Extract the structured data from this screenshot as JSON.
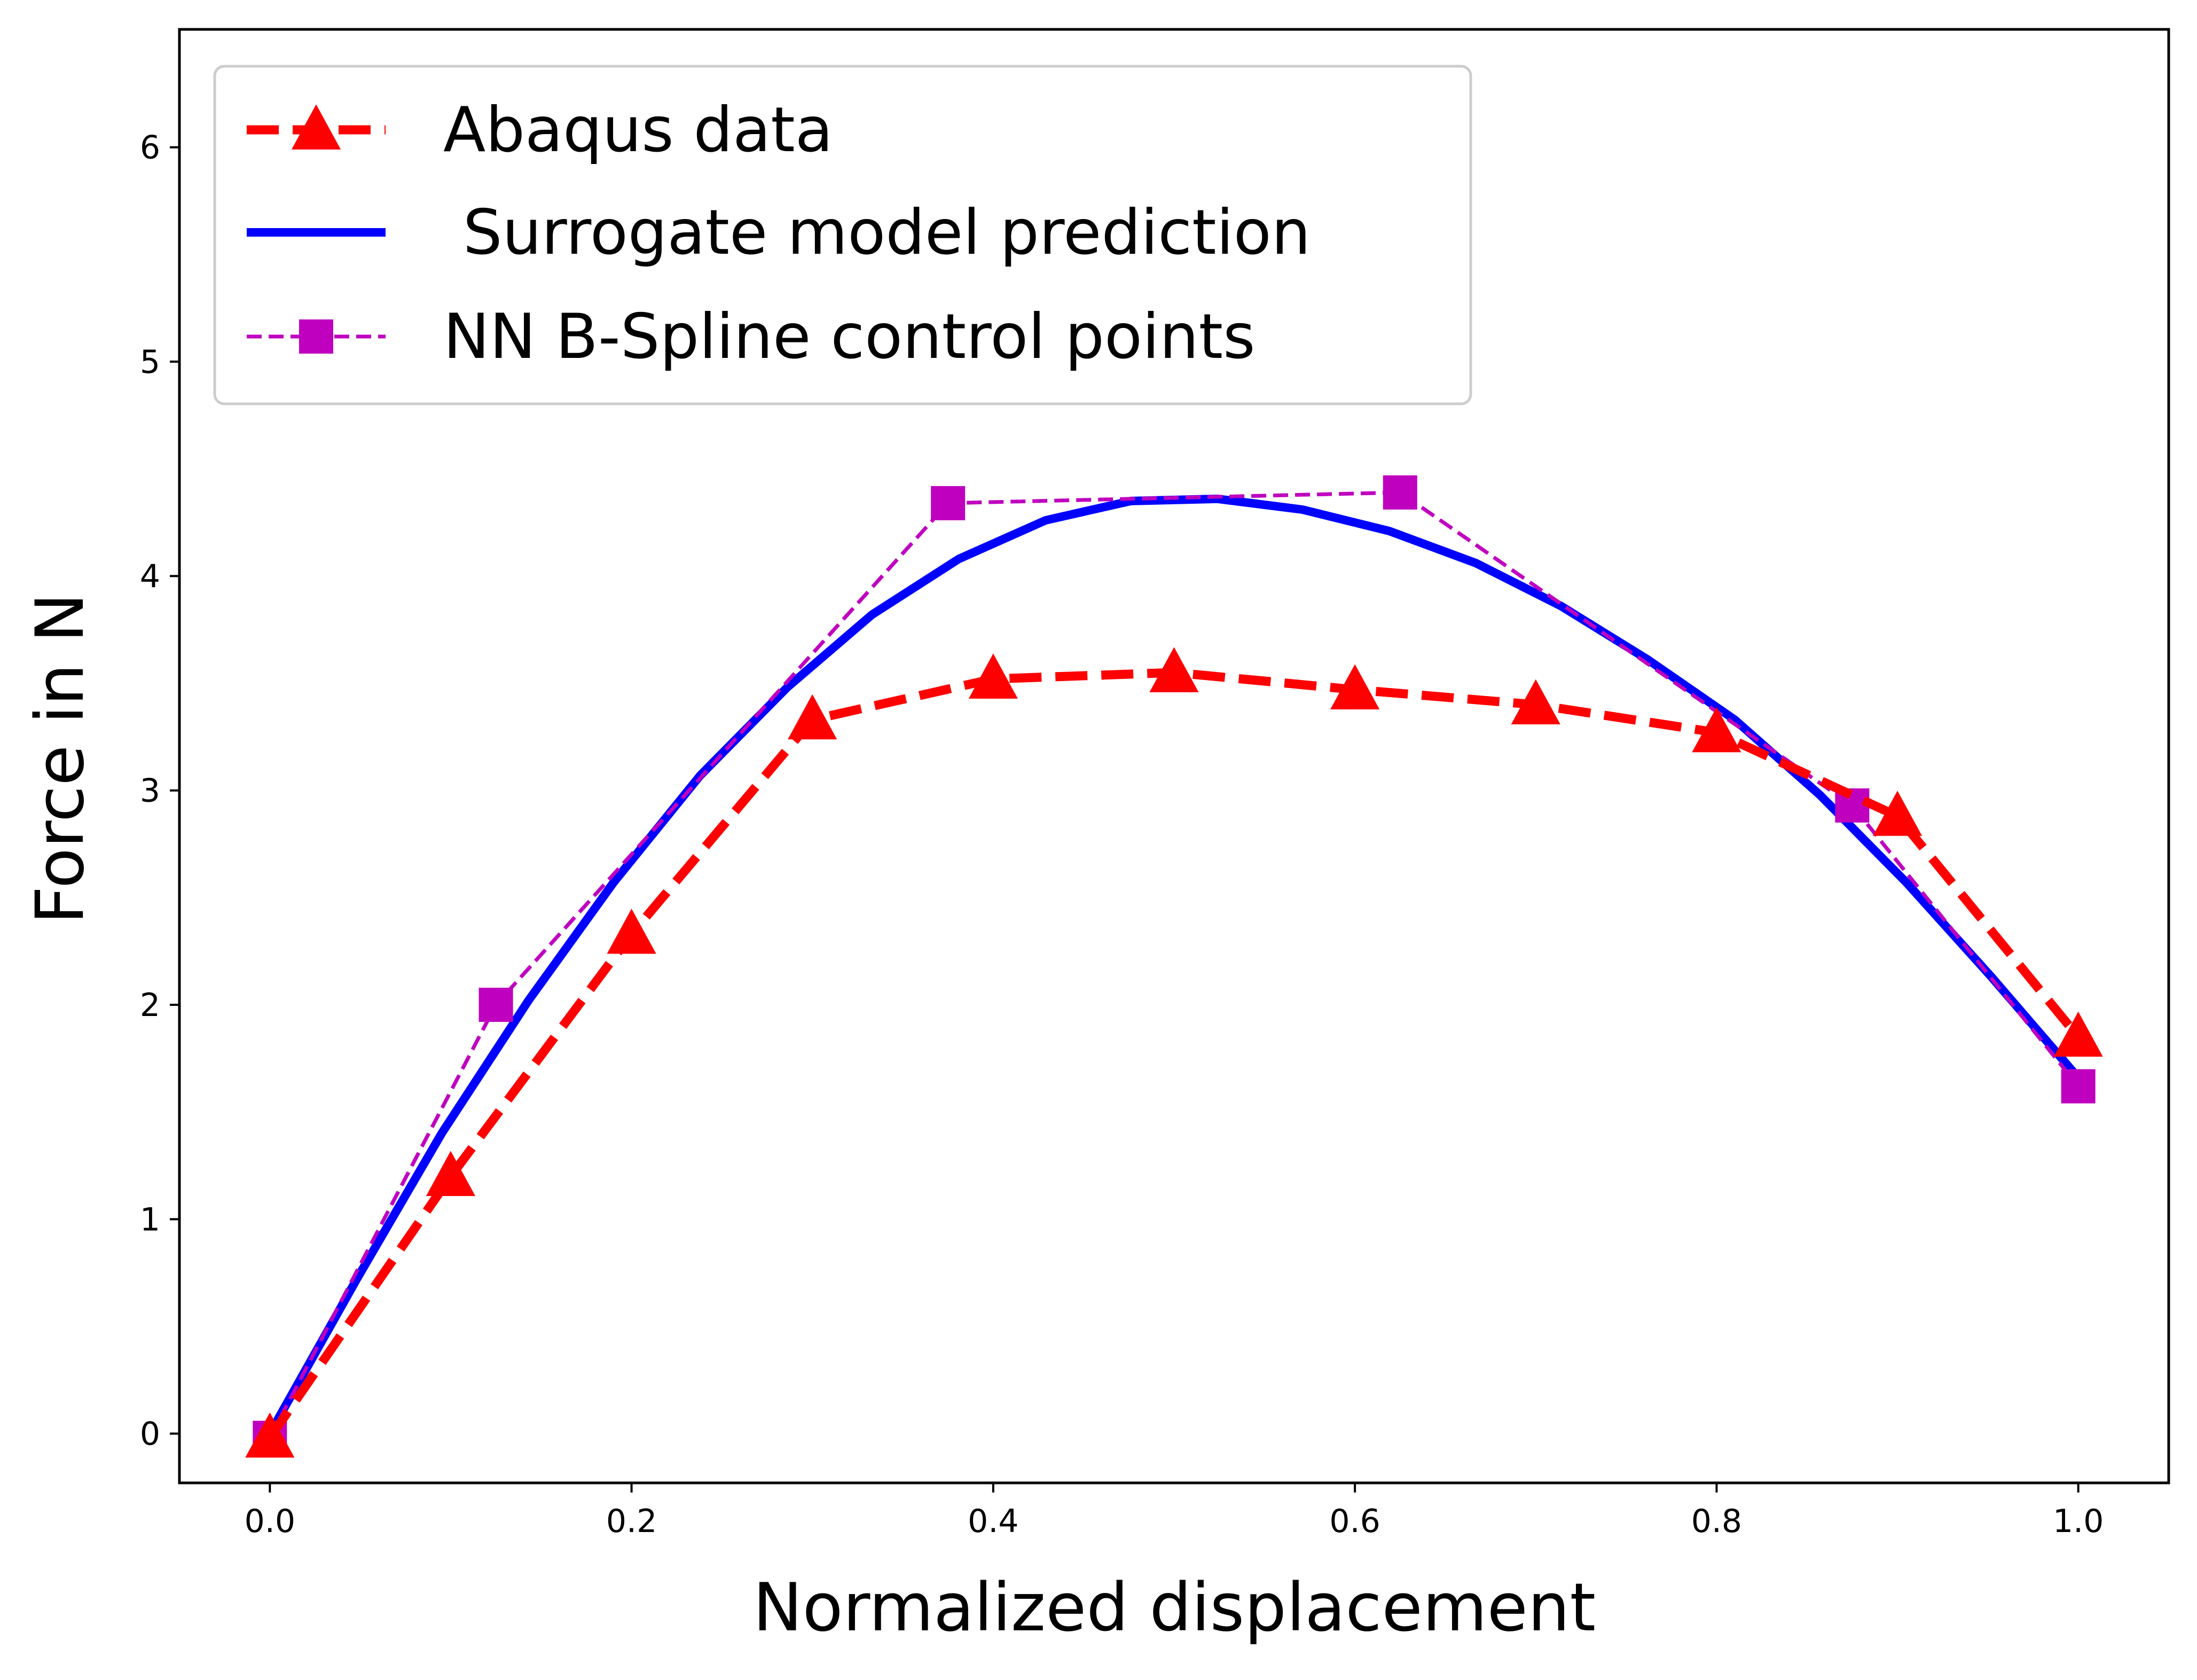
{
  "chart_data": {
    "type": "line",
    "title": "",
    "xlabel": "Normalized displacement",
    "ylabel": "Force in N",
    "xlim": [
      -0.05,
      1.05
    ],
    "ylim": [
      -0.23,
      6.55
    ],
    "xticks": [
      0.0,
      0.2,
      0.4,
      0.6,
      0.8,
      1.0
    ],
    "xtick_labels": [
      "0.0",
      "0.2",
      "0.4",
      "0.6",
      "0.8",
      "1.0"
    ],
    "yticks": [
      0,
      1,
      2,
      3,
      4,
      5,
      6
    ],
    "ytick_labels": [
      "0",
      "1",
      "2",
      "3",
      "4",
      "5",
      "6"
    ],
    "grid": false,
    "legend_position": "top-left",
    "series": [
      {
        "name": "Abaqus data",
        "color": "#ff0000",
        "line_style": "dashed",
        "marker": "triangle-up",
        "x": [
          0.0,
          0.1,
          0.2,
          0.3,
          0.4,
          0.5,
          0.6,
          0.7,
          0.8,
          0.9,
          1.0
        ],
        "y": [
          -0.02,
          1.2,
          2.33,
          3.33,
          3.52,
          3.55,
          3.47,
          3.4,
          3.27,
          2.88,
          1.85
        ]
      },
      {
        "name": " Surrogate model prediction",
        "color": "#0000ff",
        "line_style": "solid",
        "marker": "none",
        "x": [
          0.0,
          0.048,
          0.095,
          0.143,
          0.19,
          0.238,
          0.286,
          0.333,
          0.381,
          0.429,
          0.476,
          0.524,
          0.571,
          0.619,
          0.667,
          0.714,
          0.762,
          0.81,
          0.857,
          0.905,
          0.952,
          1.0
        ],
        "y": [
          0.0,
          0.72,
          1.4,
          2.02,
          2.57,
          3.07,
          3.48,
          3.82,
          4.08,
          4.26,
          4.35,
          4.36,
          4.31,
          4.21,
          4.06,
          3.86,
          3.61,
          3.33,
          2.98,
          2.57,
          2.13,
          1.66
        ]
      },
      {
        "name": "NN B-Spline control points",
        "color": "#bf00bf",
        "line_style": "dashed",
        "marker": "square",
        "x": [
          0.0,
          0.125,
          0.375,
          0.625,
          0.875,
          1.0
        ],
        "y": [
          -0.02,
          2.0,
          4.34,
          4.39,
          2.93,
          1.62
        ]
      }
    ]
  }
}
